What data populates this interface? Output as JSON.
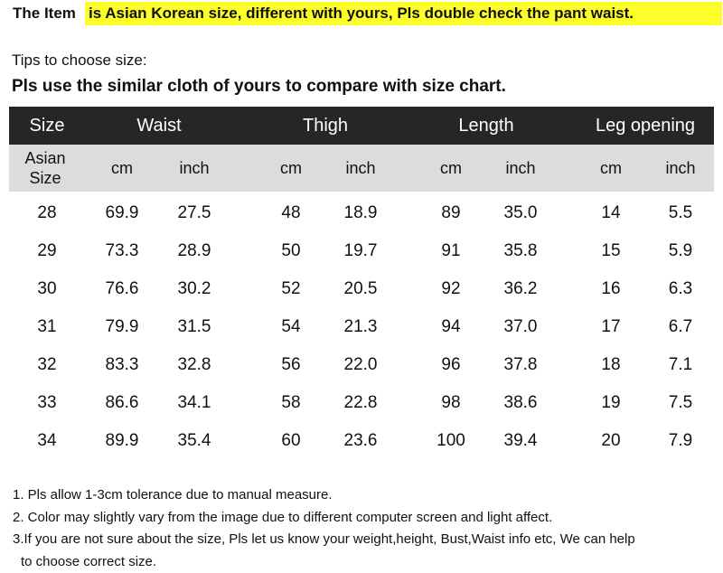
{
  "notice": {
    "lead": "The Item",
    "highlight": "is Asian Korean size, different with yours, Pls double check the pant waist.",
    "highlight_color": "#fdfd2a"
  },
  "tips": {
    "label": "Tips to choose size:",
    "text": "Pls use the similar cloth of yours to compare with size chart."
  },
  "table": {
    "groups": [
      "Size",
      "Waist",
      "Thigh",
      "Length",
      "Leg opening"
    ],
    "size_label": [
      "Asian",
      "Size"
    ],
    "units": [
      "cm",
      "inch",
      "cm",
      "inch",
      "cm",
      "inch",
      "cm",
      "inch"
    ],
    "rows": [
      [
        "28",
        "69.9",
        "27.5",
        "48",
        "18.9",
        "89",
        "35.0",
        "14",
        "5.5"
      ],
      [
        "29",
        "73.3",
        "28.9",
        "50",
        "19.7",
        "91",
        "35.8",
        "15",
        "5.9"
      ],
      [
        "30",
        "76.6",
        "30.2",
        "52",
        "20.5",
        "92",
        "36.2",
        "16",
        "6.3"
      ],
      [
        "31",
        "79.9",
        "31.5",
        "54",
        "21.3",
        "94",
        "37.0",
        "17",
        "6.7"
      ],
      [
        "32",
        "83.3",
        "32.8",
        "56",
        "22.0",
        "96",
        "37.8",
        "18",
        "7.1"
      ],
      [
        "33",
        "86.6",
        "34.1",
        "58",
        "22.8",
        "98",
        "38.6",
        "19",
        "7.5"
      ],
      [
        "34",
        "89.9",
        "35.4",
        "60",
        "23.6",
        "100",
        "39.4",
        "20",
        "7.9"
      ]
    ],
    "header_color": "#262626",
    "subheader_color": "#dcdcdc"
  },
  "notes": [
    "1. Pls allow 1-3cm tolerance due to manual measure.",
    "2. Color may slightly vary from the image due to different computer screen and light affect.",
    "3.If you are not sure about the size, Pls let us know your weight,height, Bust,Waist info etc, We can help",
    "to choose correct size."
  ]
}
